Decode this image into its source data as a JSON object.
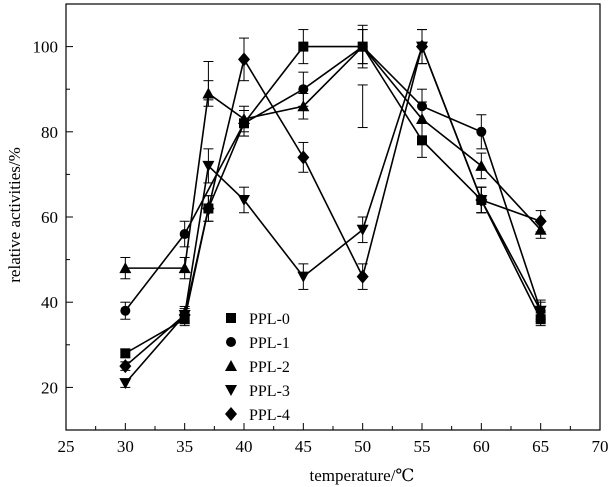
{
  "chart_data": {
    "type": "line",
    "title": "",
    "xlabel": "temperature/℃",
    "ylabel": "relative activities/%",
    "xlim": [
      25,
      70
    ],
    "ylim": [
      10,
      110
    ],
    "x_ticks": [
      25,
      30,
      35,
      40,
      45,
      50,
      55,
      60,
      65,
      70
    ],
    "x_tick_labels": [
      "25",
      "30",
      "35",
      "40",
      "45",
      "50",
      "55",
      "60",
      "65",
      "70"
    ],
    "y_ticks": [
      20,
      40,
      60,
      80,
      100
    ],
    "y_tick_labels": [
      "20",
      "40",
      "60",
      "80",
      "100"
    ],
    "grid": false,
    "legend_position": "bottom-left",
    "series": [
      {
        "name": "PPL-0",
        "marker": "square",
        "x": [
          30,
          35,
          37,
          40,
          45,
          50,
          55,
          60,
          65
        ],
        "y": [
          28,
          36,
          62,
          82,
          100,
          100,
          78,
          64,
          36
        ],
        "err": [
          1,
          1.5,
          3,
          3,
          4,
          5,
          4,
          3,
          1.5
        ]
      },
      {
        "name": "PPL-1",
        "marker": "circle",
        "x": [
          30,
          35,
          40,
          45,
          50,
          55,
          60,
          65
        ],
        "y": [
          38,
          56,
          82,
          90,
          100,
          86,
          80,
          38
        ],
        "err": [
          2,
          3,
          3,
          4,
          4,
          4,
          4,
          2.5
        ]
      },
      {
        "name": "PPL-2",
        "marker": "triangle-up",
        "x": [
          30,
          35,
          37,
          40,
          45,
          50,
          55,
          60,
          65
        ],
        "y": [
          48,
          48,
          89,
          83,
          86,
          100,
          83,
          72,
          57
        ],
        "err": [
          2.5,
          2.5,
          3,
          3,
          3,
          4,
          4,
          3,
          2
        ]
      },
      {
        "name": "PPL-3",
        "marker": "triangle-down",
        "x": [
          30,
          35,
          37,
          40,
          45,
          50,
          55,
          60,
          65
        ],
        "y": [
          21,
          37,
          72,
          64,
          46,
          57,
          100,
          64,
          38
        ],
        "err": [
          1,
          2,
          4,
          3,
          3,
          3,
          4,
          3,
          2
        ]
      },
      {
        "name": "PPL-4",
        "marker": "diamond",
        "x": [
          30,
          35,
          37,
          40,
          45,
          50,
          55,
          60,
          65
        ],
        "y": [
          25,
          37,
          62,
          97,
          74,
          46,
          100,
          64,
          59
        ],
        "err": [
          1,
          1.5,
          3,
          5,
          3.5,
          3,
          4,
          3,
          2.5
        ]
      }
    ],
    "extra_error_bars": [
      {
        "x": 37,
        "y": 92,
        "err": 4.5
      },
      {
        "x": 50,
        "y": 86,
        "err": 5
      }
    ]
  }
}
